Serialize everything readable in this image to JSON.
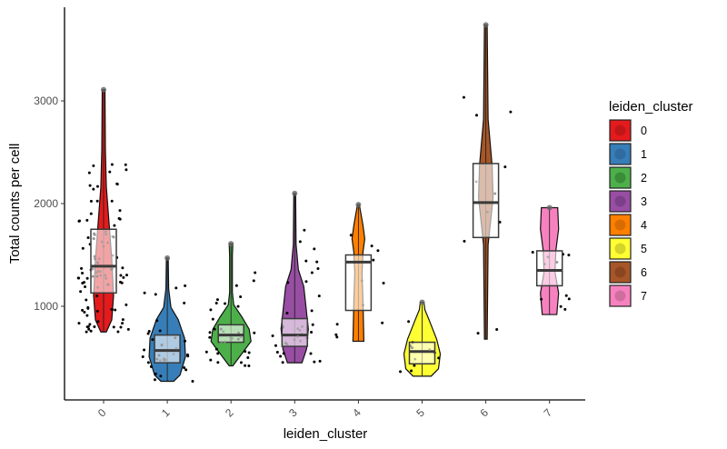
{
  "chart_data": {
    "type": "violin",
    "title": "",
    "xlabel": "leiden_cluster",
    "ylabel": "Total counts per cell",
    "categories": [
      "0",
      "1",
      "2",
      "3",
      "4",
      "5",
      "6",
      "7"
    ],
    "y_ticks": [
      1000,
      2000,
      3000
    ],
    "ylim": [
      180,
      3830
    ],
    "grid": false,
    "legend": {
      "title": "leiden_cluster",
      "position": "right",
      "entries": [
        "0",
        "1",
        "2",
        "3",
        "4",
        "5",
        "6",
        "7"
      ]
    },
    "colors": [
      "#e41a1c",
      "#377eb8",
      "#4daf4a",
      "#984ea3",
      "#ff7f00",
      "#ffff33",
      "#a65628",
      "#f781bf"
    ],
    "series": [
      {
        "cluster": "0",
        "min": 750,
        "q1": 1130,
        "median": 1390,
        "q3": 1750,
        "max": 3110,
        "n_points": "~95"
      },
      {
        "cluster": "1",
        "min": 270,
        "q1": 450,
        "median": 570,
        "q3": 720,
        "max": 1470,
        "n_points": "~40"
      },
      {
        "cluster": "2",
        "min": 420,
        "q1": 650,
        "median": 720,
        "q3": 820,
        "max": 1610,
        "n_points": "~45"
      },
      {
        "cluster": "3",
        "min": 450,
        "q1": 610,
        "median": 720,
        "q3": 880,
        "max": 2100,
        "n_points": "~35"
      },
      {
        "cluster": "4",
        "min": 660,
        "q1": 960,
        "median": 1430,
        "q3": 1500,
        "max": 1990,
        "n_points": "~8"
      },
      {
        "cluster": "5",
        "min": 320,
        "q1": 440,
        "median": 560,
        "q3": 650,
        "max": 1040,
        "n_points": "~12"
      },
      {
        "cluster": "6",
        "min": 680,
        "q1": 1670,
        "median": 2010,
        "q3": 2390,
        "max": 3740,
        "n_points": "~12"
      },
      {
        "cluster": "7",
        "min": 920,
        "q1": 1200,
        "median": 1350,
        "q3": 1540,
        "max": 1960,
        "n_points": "~8"
      }
    ]
  }
}
